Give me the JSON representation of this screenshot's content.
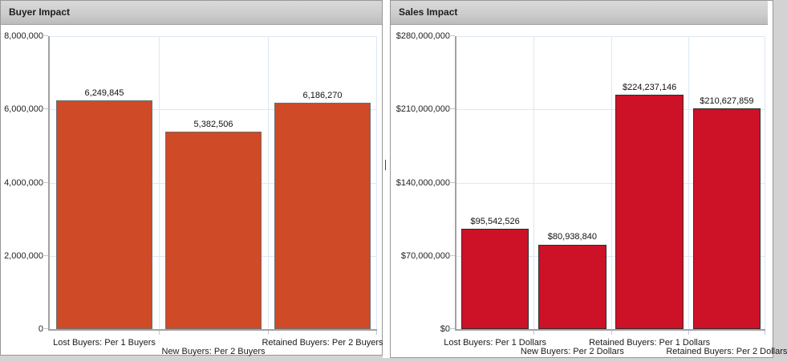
{
  "panels": [
    {
      "title": "Buyer Impact"
    },
    {
      "title": "Sales Impact"
    }
  ],
  "colors": {
    "buyer_bar": "#cf4a27",
    "sales_bar": "#cd1126",
    "gridline": "#dce8f4",
    "axis": "#a2a2a2"
  },
  "chart_data": [
    {
      "type": "bar",
      "title": "Buyer Impact",
      "categories": [
        "Lost Buyers: Per 1 Buyers",
        "New Buyers: Per 2 Buyers",
        "Retained Buyers: Per 2 Buyers"
      ],
      "values": [
        6249845,
        5382506,
        6186270
      ],
      "value_labels": [
        "6,249,845",
        "5,382,506",
        "6,186,270"
      ],
      "xlabel": "",
      "ylabel": "",
      "ylim": [
        0,
        8000000
      ],
      "yticks": [
        {
          "value": 8000000,
          "label": "8,000,000"
        },
        {
          "value": 6000000,
          "label": "6,000,000"
        },
        {
          "value": 4000000,
          "label": "4,000,000"
        },
        {
          "value": 2000000,
          "label": "2,000,000"
        },
        {
          "value": 0,
          "label": "0"
        }
      ],
      "grid": true,
      "legend": "none",
      "bar_color": "#cf4a27",
      "bar_border_color": "#6e6e6e",
      "gridline_color": "#dce8f4"
    },
    {
      "type": "bar",
      "title": "Sales Impact",
      "categories": [
        "Lost Buyers: Per 1 Dollars",
        "New Buyers: Per 2 Dollars",
        "Retained Buyers: Per 1 Dollars",
        "Retained Buyers: Per 2 Dollars"
      ],
      "values": [
        95542526,
        80938840,
        224237146,
        210627859
      ],
      "value_labels": [
        "$95,542,526",
        "$80,938,840",
        "$224,237,146",
        "$210,627,859"
      ],
      "xlabel": "",
      "ylabel": "",
      "ylim": [
        0,
        280000000
      ],
      "yticks": [
        {
          "value": 280000000,
          "label": "$280,000,000"
        },
        {
          "value": 210000000,
          "label": "$210,000,000"
        },
        {
          "value": 140000000,
          "label": "$140,000,000"
        },
        {
          "value": 70000000,
          "label": "$70,000,000"
        },
        {
          "value": 0,
          "label": "$0"
        }
      ],
      "grid": true,
      "legend": "none",
      "bar_color": "#cd1126",
      "bar_border_color": "#2e2e2e",
      "gridline_color": "#dce8f4"
    }
  ]
}
